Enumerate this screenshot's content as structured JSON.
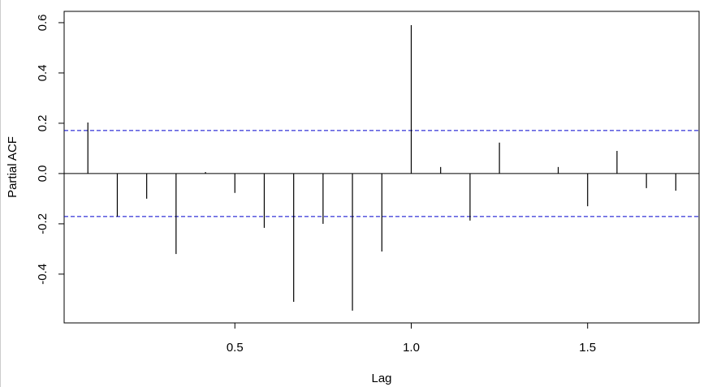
{
  "chart_data": {
    "type": "stem",
    "x_label": "Lag",
    "y_label": "Partial ACF",
    "x": [
      0.0833,
      0.1667,
      0.25,
      0.3333,
      0.4167,
      0.5,
      0.5833,
      0.6667,
      0.75,
      0.8333,
      0.9167,
      1.0,
      1.0833,
      1.1667,
      1.25,
      1.3333,
      1.4167,
      1.5,
      1.5833,
      1.6667,
      1.75
    ],
    "values": [
      0.203,
      -0.171,
      -0.1,
      -0.32,
      0.006,
      -0.077,
      -0.216,
      -0.51,
      -0.2,
      -0.545,
      -0.31,
      0.59,
      0.026,
      -0.187,
      0.123,
      0,
      0.026,
      -0.13,
      0.09,
      -0.058,
      -0.068
    ],
    "color": "#000000",
    "conf_limits": [
      -0.171,
      0.171
    ],
    "conf_color": "#0000cd",
    "xlim": [
      0.016,
      1.816
    ],
    "ylim": [
      -0.594,
      0.645
    ],
    "xticks": [
      0.5,
      {
        "value": 1,
        "label": "1.0"
      },
      1.5
    ],
    "yticks": [
      -0.4,
      -0.2,
      {
        "value": 0,
        "label": "0.0"
      },
      0.2,
      0.4,
      0.6
    ]
  }
}
